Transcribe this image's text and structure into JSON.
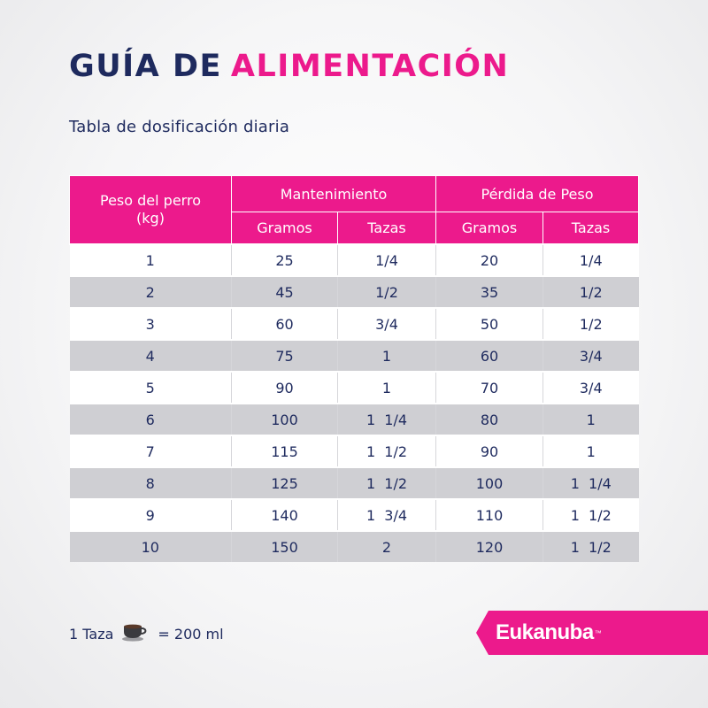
{
  "header": {
    "title_part1": "GUÍA DE",
    "title_part2": "ALIMENTACIÓN",
    "subtitle": "Tabla de dosificación diaria"
  },
  "table": {
    "weight_header_line1": "Peso del perro",
    "weight_header_line2": "(kg)",
    "groups": [
      "Mantenimiento",
      "Pérdida de Peso"
    ],
    "subheaders": [
      "Gramos",
      "Tazas",
      "Gramos",
      "Tazas"
    ],
    "rows": [
      [
        "1",
        "25",
        "1/4",
        "20",
        "1/4"
      ],
      [
        "2",
        "45",
        "1/2",
        "35",
        "1/2"
      ],
      [
        "3",
        "60",
        "3/4",
        "50",
        "1/2"
      ],
      [
        "4",
        "75",
        "1",
        "60",
        "3/4"
      ],
      [
        "5",
        "90",
        "1",
        "70",
        "3/4"
      ],
      [
        "6",
        "100",
        "1  1/4",
        "80",
        "1"
      ],
      [
        "7",
        "115",
        "1  1/2",
        "90",
        "1"
      ],
      [
        "8",
        "125",
        "1  1/2",
        "100",
        "1  1/4"
      ],
      [
        "9",
        "140",
        "1  3/4",
        "110",
        "1  1/2"
      ],
      [
        "10",
        "150",
        "2",
        "120",
        "1  1/2"
      ]
    ]
  },
  "footer": {
    "cup_label": "1 Taza",
    "cup_icon": "coffee-cup-icon",
    "equals_text": "= 200 ml"
  },
  "brand": {
    "name": "Eukanuba",
    "trademark": "™"
  },
  "colors": {
    "accent": "#ec1a8c",
    "navy": "#1e2a5e",
    "row_alt": "#cfcfd3"
  }
}
